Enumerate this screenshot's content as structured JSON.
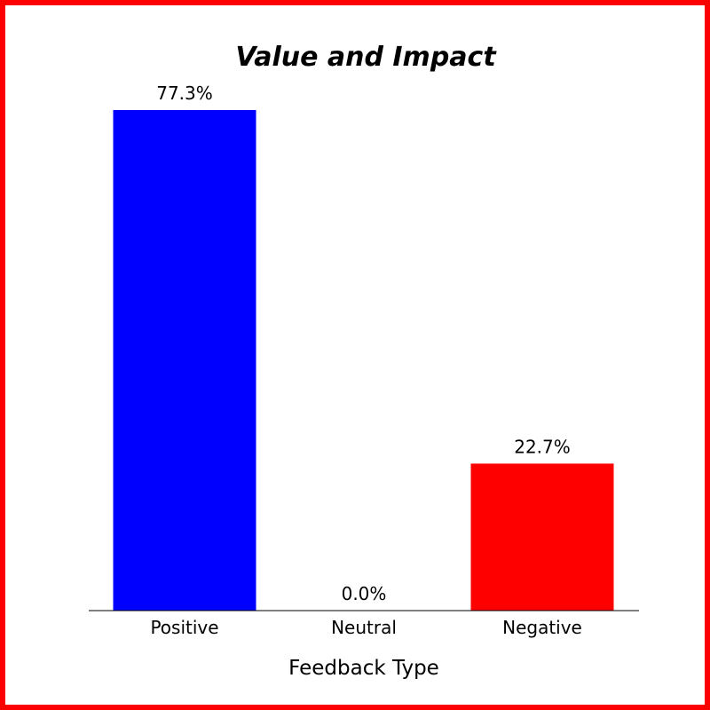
{
  "chart_data": {
    "type": "bar",
    "title": "Value and Impact",
    "xlabel": "Feedback Type",
    "ylabel": "",
    "categories": [
      "Positive",
      "Neutral",
      "Negative"
    ],
    "values": [
      77.3,
      0.0,
      22.7
    ],
    "value_labels": [
      "77.3%",
      "0.0%",
      "22.7%"
    ],
    "colors": [
      "#0000ff",
      "#ffffff",
      "#ff0000"
    ],
    "ylim": [
      0,
      77.3
    ],
    "grid": false,
    "legend": "none",
    "border_color": "#ff0000"
  }
}
